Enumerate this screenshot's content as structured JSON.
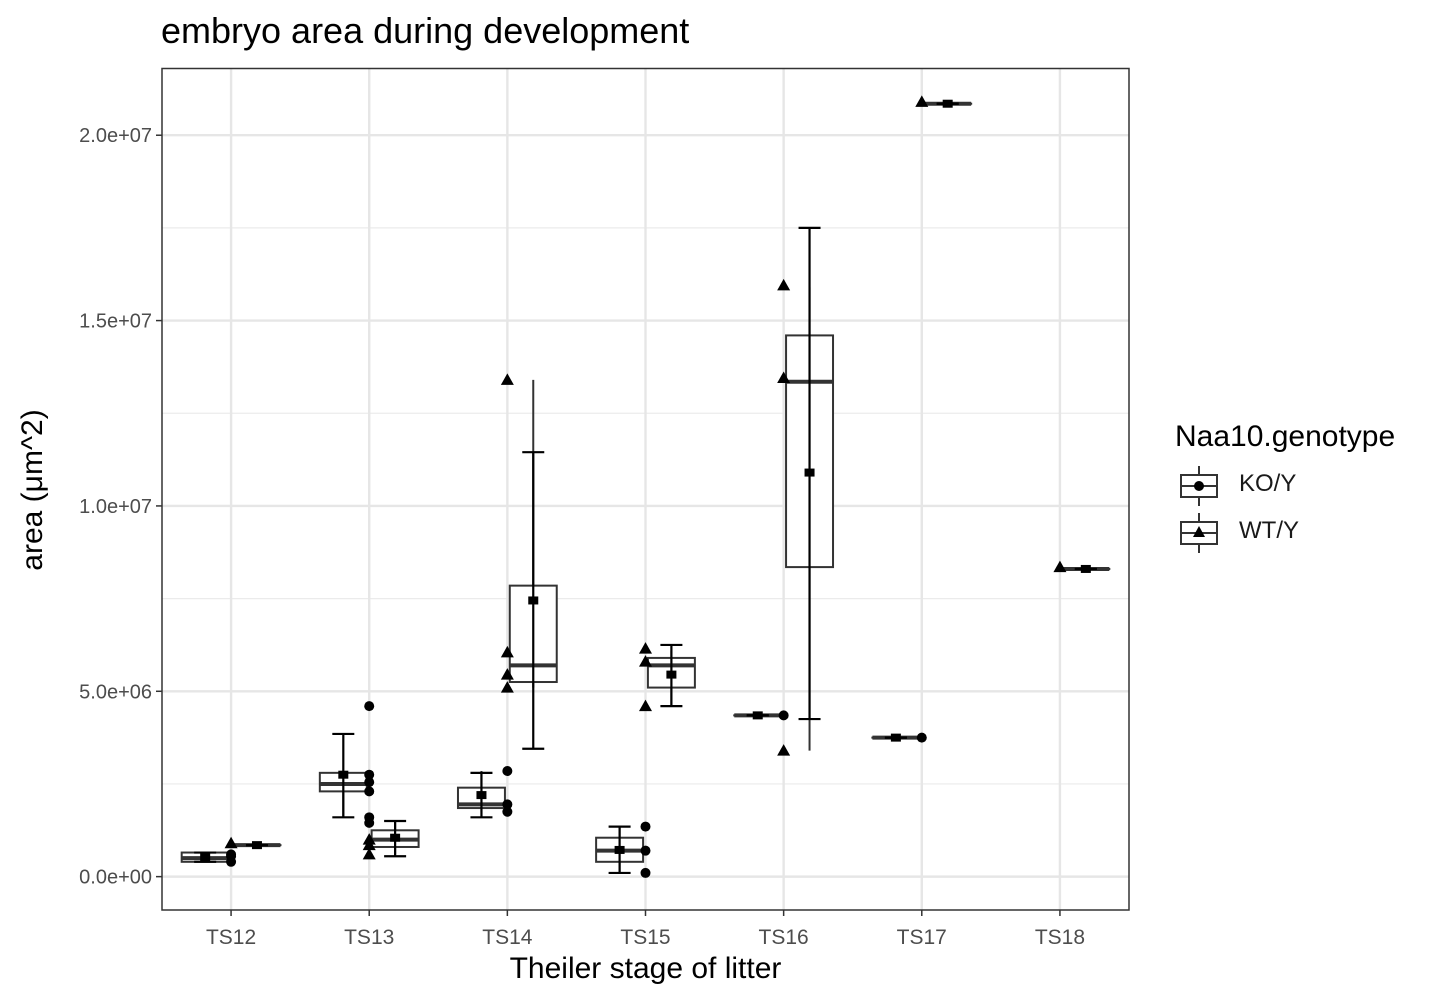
{
  "chart_data": {
    "type": "box",
    "title": "embryo area during development",
    "xlabel": "Theiler stage of litter",
    "ylabel": "area (μm^2)",
    "categories": [
      "TS12",
      "TS13",
      "TS14",
      "TS15",
      "TS16",
      "TS17",
      "TS18"
    ],
    "ylim": [
      -900000,
      21800000
    ],
    "yticks": [
      0,
      5000000,
      10000000,
      15000000,
      20000000
    ],
    "ytick_labels": [
      "0.0e+00",
      "5.0e+06",
      "1.0e+07",
      "1.5e+07",
      "2.0e+07"
    ],
    "grid": true,
    "legend_title": "Naa10.genotype",
    "legend_position": "right",
    "series": [
      {
        "name": "KO/Y",
        "marker": "circle",
        "boxes": [
          {
            "category": "TS12",
            "q1": 400000,
            "median": 500000,
            "q3": 650000,
            "whisker_low": 400000,
            "whisker_high": 650000,
            "mean": 520000,
            "ci_low": 400000,
            "ci_high": 650000
          },
          {
            "category": "TS13",
            "q1": 2300000,
            "median": 2500000,
            "q3": 2800000,
            "whisker_low": 1600000,
            "whisker_high": 2800000,
            "mean": 2750000,
            "ci_low": 1600000,
            "ci_high": 3850000
          },
          {
            "category": "TS14",
            "q1": 1850000,
            "median": 1950000,
            "q3": 2400000,
            "whisker_low": 1750000,
            "whisker_high": 2850000,
            "mean": 2200000,
            "ci_low": 1600000,
            "ci_high": 2800000
          },
          {
            "category": "TS15",
            "q1": 400000,
            "median": 700000,
            "q3": 1050000,
            "whisker_low": 100000,
            "whisker_high": 1350000,
            "mean": 720000,
            "ci_low": 100000,
            "ci_high": 1350000
          },
          {
            "category": "TS16",
            "q1": 4350000,
            "median": 4350000,
            "q3": 4350000,
            "whisker_low": 4350000,
            "whisker_high": 4350000,
            "mean": 4350000,
            "ci_low": 4350000,
            "ci_high": 4350000
          },
          {
            "category": "TS17",
            "q1": 3750000,
            "median": 3750000,
            "q3": 3750000,
            "whisker_low": 3750000,
            "whisker_high": 3750000,
            "mean": 3750000,
            "ci_low": 3750000,
            "ci_high": 3750000
          }
        ],
        "points": [
          {
            "category": "TS12",
            "y": 400000
          },
          {
            "category": "TS12",
            "y": 550000
          },
          {
            "category": "TS12",
            "y": 600000
          },
          {
            "category": "TS13",
            "y": 4600000
          },
          {
            "category": "TS13",
            "y": 2750000
          },
          {
            "category": "TS13",
            "y": 2550000
          },
          {
            "category": "TS13",
            "y": 2300000
          },
          {
            "category": "TS13",
            "y": 1600000
          },
          {
            "category": "TS13",
            "y": 1450000
          },
          {
            "category": "TS14",
            "y": 2850000
          },
          {
            "category": "TS14",
            "y": 1950000
          },
          {
            "category": "TS14",
            "y": 1750000
          },
          {
            "category": "TS15",
            "y": 1350000
          },
          {
            "category": "TS15",
            "y": 700000
          },
          {
            "category": "TS15",
            "y": 100000
          },
          {
            "category": "TS16",
            "y": 4350000
          },
          {
            "category": "TS17",
            "y": 3750000
          }
        ]
      },
      {
        "name": "WT/Y",
        "marker": "triangle",
        "boxes": [
          {
            "category": "TS12",
            "q1": 850000,
            "median": 850000,
            "q3": 850000,
            "whisker_low": 850000,
            "whisker_high": 850000,
            "mean": 850000,
            "ci_low": 850000,
            "ci_high": 850000
          },
          {
            "category": "TS13",
            "q1": 800000,
            "median": 1000000,
            "q3": 1250000,
            "whisker_low": 600000,
            "whisker_high": 1500000,
            "mean": 1050000,
            "ci_low": 550000,
            "ci_high": 1500000
          },
          {
            "category": "TS14",
            "q1": 5250000,
            "median": 5700000,
            "q3": 7850000,
            "whisker_low": 5100000,
            "whisker_high": 13400000,
            "mean": 7450000,
            "ci_low": 3450000,
            "ci_high": 11450000
          },
          {
            "category": "TS15",
            "q1": 5100000,
            "median": 5700000,
            "q3": 5900000,
            "whisker_low": 4600000,
            "whisker_high": 6100000,
            "mean": 5450000,
            "ci_low": 4600000,
            "ci_high": 6250000
          },
          {
            "category": "TS16",
            "q1": 8350000,
            "median": 13350000,
            "q3": 14600000,
            "whisker_low": 3400000,
            "whisker_high": 15900000,
            "mean": 10900000,
            "ci_low": 4250000,
            "ci_high": 17500000
          },
          {
            "category": "TS17",
            "q1": 20850000,
            "median": 20850000,
            "q3": 20850000,
            "whisker_low": 20850000,
            "whisker_high": 20850000,
            "mean": 20850000,
            "ci_low": 20850000,
            "ci_high": 20850000
          },
          {
            "category": "TS18",
            "q1": 8300000,
            "median": 8300000,
            "q3": 8300000,
            "whisker_low": 8300000,
            "whisker_high": 8300000,
            "mean": 8300000,
            "ci_low": 8300000,
            "ci_high": 8300000
          }
        ],
        "points": [
          {
            "category": "TS12",
            "y": 900000
          },
          {
            "category": "TS13",
            "y": 1000000
          },
          {
            "category": "TS13",
            "y": 850000
          },
          {
            "category": "TS13",
            "y": 600000
          },
          {
            "category": "TS14",
            "y": 13400000
          },
          {
            "category": "TS14",
            "y": 6050000
          },
          {
            "category": "TS14",
            "y": 5450000
          },
          {
            "category": "TS14",
            "y": 5100000
          },
          {
            "category": "TS15",
            "y": 6150000
          },
          {
            "category": "TS15",
            "y": 5800000
          },
          {
            "category": "TS15",
            "y": 4600000
          },
          {
            "category": "TS16",
            "y": 15950000
          },
          {
            "category": "TS16",
            "y": 13450000
          },
          {
            "category": "TS16",
            "y": 3400000
          },
          {
            "category": "TS17",
            "y": 20900000
          },
          {
            "category": "TS18",
            "y": 8350000
          }
        ]
      }
    ]
  }
}
